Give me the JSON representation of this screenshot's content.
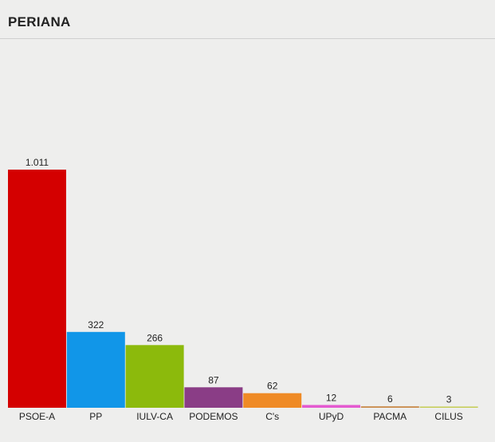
{
  "header": {
    "title": "PERIANA"
  },
  "chart_data": {
    "type": "bar",
    "title": "PERIANA",
    "xlabel": "",
    "ylabel": "",
    "categories": [
      "PSOE-A",
      "PP",
      "IULV-CA",
      "PODEMOS",
      "C's",
      "UPyD",
      "PACMA",
      "CILUS"
    ],
    "values": [
      1011,
      322,
      266,
      87,
      62,
      12,
      6,
      3
    ],
    "value_labels": [
      "1.011",
      "322",
      "266",
      "87",
      "62",
      "12",
      "6",
      "3"
    ],
    "colors": [
      "#d40000",
      "#1196e8",
      "#8cba0c",
      "#8a3d86",
      "#ef8a25",
      "#e45ad0",
      "#c98a4a",
      "#c4cc52"
    ],
    "ylim": [
      0,
      1011
    ],
    "grid": false,
    "legend": "none"
  }
}
